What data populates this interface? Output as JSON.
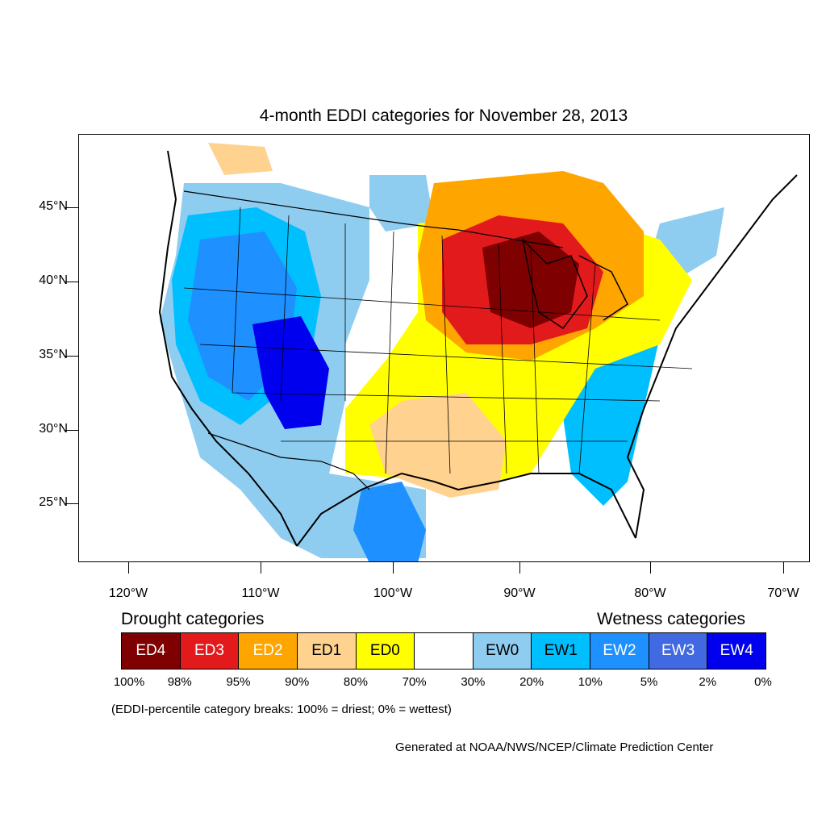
{
  "title": "4-month EDDI categories for November 28, 2013",
  "lat_labels": [
    "45°N",
    "40°N",
    "35°N",
    "30°N",
    "25°N"
  ],
  "lon_labels": [
    "120°W",
    "110°W",
    "100°W",
    "90°W",
    "80°W",
    "70°W"
  ],
  "legend": {
    "drought_heading": "Drought categories",
    "wetness_heading": "Wetness categories",
    "categories": [
      {
        "label": "ED4",
        "color": "#7f0000",
        "text_color": "#ffffff"
      },
      {
        "label": "ED3",
        "color": "#e31a1c",
        "text_color": "#ffffff"
      },
      {
        "label": "ED2",
        "color": "#ffa500",
        "text_color": "#ffffff"
      },
      {
        "label": "ED1",
        "color": "#ffd28f",
        "text_color": "#000000"
      },
      {
        "label": "ED0",
        "color": "#ffff00",
        "text_color": "#000000"
      },
      {
        "label": "",
        "color": "#ffffff",
        "text_color": "#000000"
      },
      {
        "label": "EW0",
        "color": "#8fcdf0",
        "text_color": "#000000"
      },
      {
        "label": "EW1",
        "color": "#00bfff",
        "text_color": "#000000"
      },
      {
        "label": "EW2",
        "color": "#1e90ff",
        "text_color": "#ffffff"
      },
      {
        "label": "EW3",
        "color": "#4169e1",
        "text_color": "#ffffff"
      },
      {
        "label": "EW4",
        "color": "#0000ee",
        "text_color": "#ffffff"
      }
    ],
    "breaks": [
      "100%",
      "98%",
      "95%",
      "90%",
      "80%",
      "70%",
      "30%",
      "20%",
      "10%",
      "5%",
      "2%",
      "0%"
    ]
  },
  "note": "(EDDI-percentile category breaks: 100% = driest; 0% = wettest)",
  "credit": "Generated at NOAA/NWS/NCEP/Climate Prediction Center"
}
